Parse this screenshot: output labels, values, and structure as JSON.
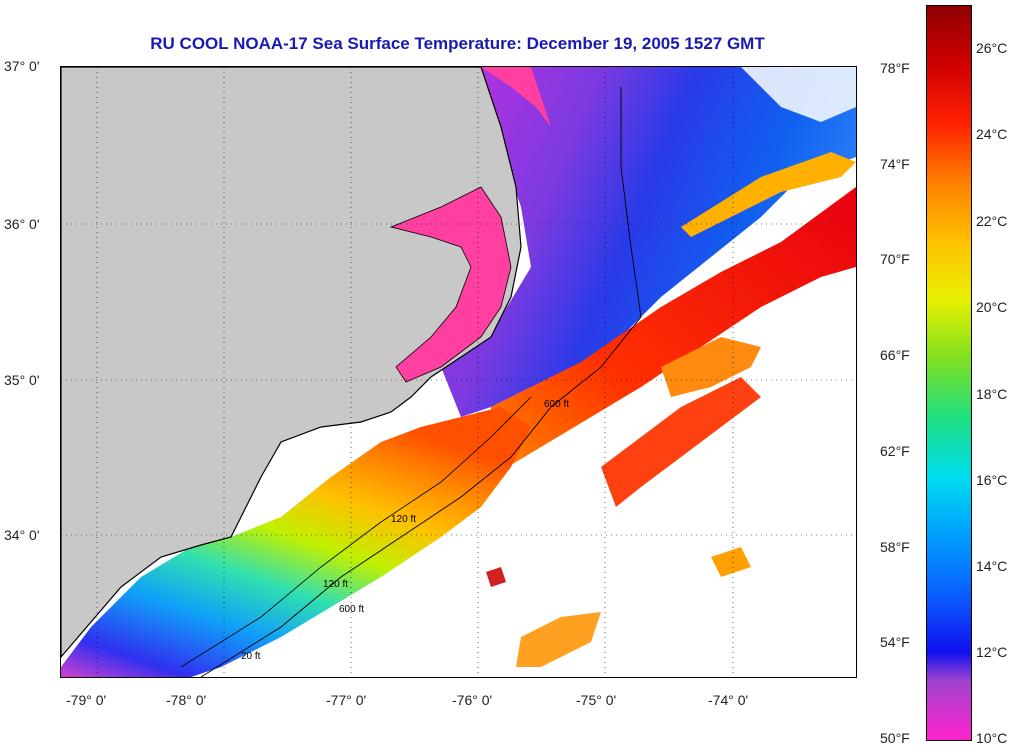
{
  "title": "RU COOL  NOAA-17  Sea Surface Temperature:  December 19, 2005 1527 GMT",
  "lat_labels": [
    "37° 0'",
    "36° 0'",
    "35° 0'",
    "34° 0'"
  ],
  "lon_labels": [
    "-79° 0'",
    "-78° 0'",
    "-77° 0'",
    "-76° 0'",
    "-75° 0'",
    "-74° 0'"
  ],
  "colorbar": {
    "fahrenheit": [
      "78°F",
      "74°F",
      "70°F",
      "66°F",
      "62°F",
      "58°F",
      "54°F",
      "50°F"
    ],
    "celsius": [
      "26°C",
      "24°C",
      "22°C",
      "20°C",
      "18°C",
      "16°C",
      "14°C",
      "12°C",
      "10°C"
    ]
  },
  "contours": [
    "600 ft",
    "120 ft",
    "600 ft",
    "120 ft",
    "20 ft"
  ],
  "colors": {
    "land": "#c8c8c8",
    "no_data": "#ffffff",
    "title": "#1a1ab0"
  }
}
